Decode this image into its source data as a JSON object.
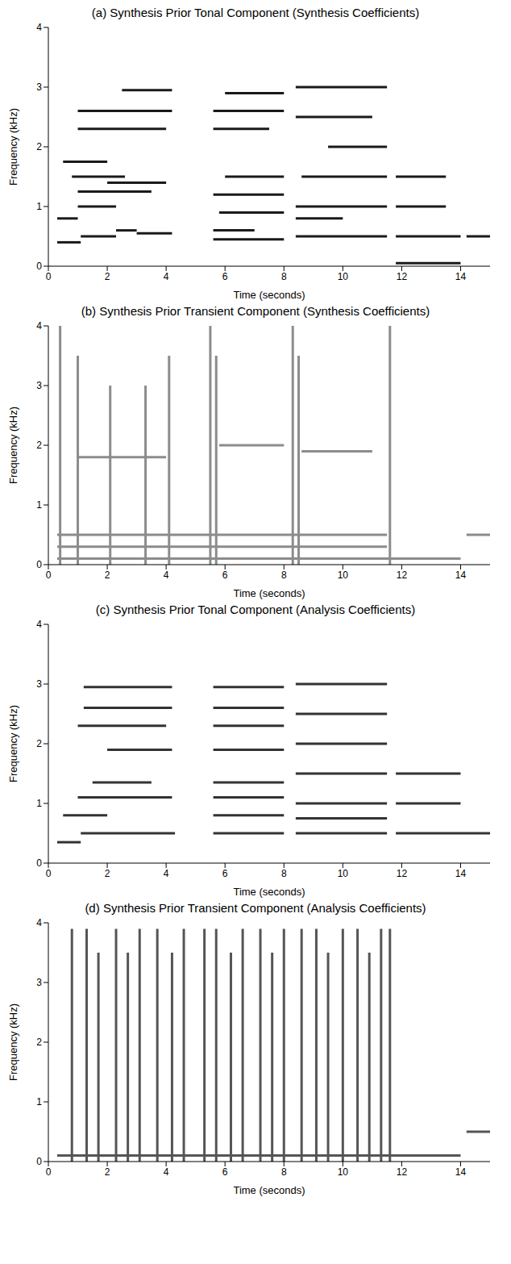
{
  "chart_data": [
    {
      "type": "spectrogram",
      "title": "(a) Synthesis Prior Tonal Component (Synthesis Coefficients)",
      "x_label": "Time (seconds)",
      "y_label": "Frequency (kHz)",
      "xlim": [
        0,
        15
      ],
      "ylim": [
        0,
        4
      ],
      "xticks": [
        0,
        2,
        4,
        6,
        8,
        10,
        12,
        14
      ],
      "yticks": [
        0,
        1,
        2,
        3,
        4
      ],
      "color": "#1a1a1a",
      "segments": [
        {
          "x": [
            0.3,
            1.1
          ],
          "y": [
            0.4,
            0.4
          ]
        },
        {
          "x": [
            1.1,
            2.3
          ],
          "y": [
            0.5,
            0.5
          ]
        },
        {
          "x": [
            2.3,
            3.0
          ],
          "y": [
            0.6,
            0.6
          ]
        },
        {
          "x": [
            3.0,
            4.2
          ],
          "y": [
            0.55,
            0.55
          ]
        },
        {
          "x": [
            0.3,
            1.0
          ],
          "y": [
            0.8,
            0.8
          ]
        },
        {
          "x": [
            1.0,
            2.3
          ],
          "y": [
            1.0,
            1.0
          ]
        },
        {
          "x": [
            1.0,
            3.5
          ],
          "y": [
            1.25,
            1.25
          ]
        },
        {
          "x": [
            0.8,
            2.6
          ],
          "y": [
            1.5,
            1.5
          ]
        },
        {
          "x": [
            2.0,
            4.0
          ],
          "y": [
            1.4,
            1.4
          ]
        },
        {
          "x": [
            0.5,
            2.0
          ],
          "y": [
            1.75,
            1.75
          ]
        },
        {
          "x": [
            1.0,
            4.0
          ],
          "y": [
            2.3,
            2.3
          ]
        },
        {
          "x": [
            1.0,
            4.2
          ],
          "y": [
            2.6,
            2.6
          ]
        },
        {
          "x": [
            2.5,
            4.2
          ],
          "y": [
            2.95,
            2.95
          ]
        },
        {
          "x": [
            5.6,
            8.0
          ],
          "y": [
            0.45,
            0.45
          ]
        },
        {
          "x": [
            5.6,
            7.0
          ],
          "y": [
            0.6,
            0.6
          ]
        },
        {
          "x": [
            5.8,
            8.0
          ],
          "y": [
            0.9,
            0.9
          ]
        },
        {
          "x": [
            5.6,
            8.0
          ],
          "y": [
            1.2,
            1.2
          ]
        },
        {
          "x": [
            6.0,
            8.0
          ],
          "y": [
            1.5,
            1.5
          ]
        },
        {
          "x": [
            5.6,
            7.5
          ],
          "y": [
            2.3,
            2.3
          ]
        },
        {
          "x": [
            5.6,
            8.0
          ],
          "y": [
            2.6,
            2.6
          ]
        },
        {
          "x": [
            6.0,
            8.0
          ],
          "y": [
            2.9,
            2.9
          ]
        },
        {
          "x": [
            8.4,
            11.5
          ],
          "y": [
            0.5,
            0.5
          ]
        },
        {
          "x": [
            8.4,
            10.0
          ],
          "y": [
            0.8,
            0.8
          ]
        },
        {
          "x": [
            8.4,
            11.5
          ],
          "y": [
            1.0,
            1.0
          ]
        },
        {
          "x": [
            8.6,
            11.5
          ],
          "y": [
            1.5,
            1.5
          ]
        },
        {
          "x": [
            9.5,
            11.5
          ],
          "y": [
            2.0,
            2.0
          ]
        },
        {
          "x": [
            8.4,
            11.0
          ],
          "y": [
            2.5,
            2.5
          ]
        },
        {
          "x": [
            8.4,
            11.5
          ],
          "y": [
            3.0,
            3.0
          ]
        },
        {
          "x": [
            11.8,
            14.0
          ],
          "y": [
            0.5,
            0.5
          ]
        },
        {
          "x": [
            11.8,
            13.5
          ],
          "y": [
            1.0,
            1.0
          ]
        },
        {
          "x": [
            11.8,
            13.5
          ],
          "y": [
            1.5,
            1.5
          ]
        },
        {
          "x": [
            14.2,
            15.0
          ],
          "y": [
            0.5,
            0.5
          ]
        },
        {
          "x": [
            11.8,
            14.0
          ],
          "y": [
            0.05,
            0.05
          ]
        }
      ]
    },
    {
      "type": "spectrogram",
      "title": "(b) Synthesis Prior Transient Component (Synthesis Coefficients)",
      "x_label": "Time (seconds)",
      "y_label": "Frequency (kHz)",
      "xlim": [
        0,
        15
      ],
      "ylim": [
        0,
        4
      ],
      "xticks": [
        0,
        2,
        4,
        6,
        8,
        10,
        12,
        14
      ],
      "yticks": [
        0,
        1,
        2,
        3,
        4
      ],
      "color": "#8c8c8c",
      "segments": [
        {
          "x": [
            0.3,
            14.0
          ],
          "y": [
            0.1,
            0.1
          ]
        },
        {
          "x": [
            0.3,
            11.5
          ],
          "y": [
            0.3,
            0.3
          ]
        },
        {
          "x": [
            0.3,
            11.5
          ],
          "y": [
            0.5,
            0.5
          ]
        },
        {
          "x": [
            14.2,
            15.0
          ],
          "y": [
            0.5,
            0.5
          ]
        },
        {
          "x": [
            1.0,
            4.0
          ],
          "y": [
            1.8,
            1.8
          ]
        },
        {
          "x": [
            5.8,
            8.0
          ],
          "y": [
            2.0,
            2.0
          ]
        },
        {
          "x": [
            8.6,
            11.0
          ],
          "y": [
            1.9,
            1.9
          ]
        },
        {
          "x": [
            0.4,
            0.4
          ],
          "y": [
            0.0,
            4.0
          ]
        },
        {
          "x": [
            1.0,
            1.0
          ],
          "y": [
            0.0,
            3.5
          ]
        },
        {
          "x": [
            2.1,
            2.1
          ],
          "y": [
            0.0,
            3.0
          ]
        },
        {
          "x": [
            3.3,
            3.3
          ],
          "y": [
            0.0,
            3.0
          ]
        },
        {
          "x": [
            4.1,
            4.1
          ],
          "y": [
            0.0,
            3.5
          ]
        },
        {
          "x": [
            5.5,
            5.5
          ],
          "y": [
            0.0,
            4.0
          ]
        },
        {
          "x": [
            5.7,
            5.7
          ],
          "y": [
            0.0,
            3.5
          ]
        },
        {
          "x": [
            8.3,
            8.3
          ],
          "y": [
            0.0,
            4.0
          ]
        },
        {
          "x": [
            8.5,
            8.5
          ],
          "y": [
            0.0,
            3.5
          ]
        },
        {
          "x": [
            11.6,
            11.6
          ],
          "y": [
            0.0,
            4.0
          ]
        }
      ]
    },
    {
      "type": "spectrogram",
      "title": "(c) Synthesis Prior Tonal Component (Analysis Coefficients)",
      "x_label": "Time (seconds)",
      "y_label": "Frequency (kHz)",
      "xlim": [
        0,
        15
      ],
      "ylim": [
        0,
        4
      ],
      "xticks": [
        0,
        2,
        4,
        6,
        8,
        10,
        12,
        14
      ],
      "yticks": [
        0,
        1,
        2,
        3,
        4
      ],
      "color": "#333333",
      "segments": [
        {
          "x": [
            0.3,
            1.1
          ],
          "y": [
            0.35,
            0.35
          ]
        },
        {
          "x": [
            1.1,
            4.3
          ],
          "y": [
            0.5,
            0.5
          ]
        },
        {
          "x": [
            0.5,
            2.0
          ],
          "y": [
            0.8,
            0.8
          ]
        },
        {
          "x": [
            1.0,
            4.2
          ],
          "y": [
            1.1,
            1.1
          ]
        },
        {
          "x": [
            1.5,
            3.5
          ],
          "y": [
            1.35,
            1.35
          ]
        },
        {
          "x": [
            2.0,
            4.2
          ],
          "y": [
            1.9,
            1.9
          ]
        },
        {
          "x": [
            1.0,
            4.0
          ],
          "y": [
            2.3,
            2.3
          ]
        },
        {
          "x": [
            1.2,
            4.2
          ],
          "y": [
            2.6,
            2.6
          ]
        },
        {
          "x": [
            1.2,
            4.2
          ],
          "y": [
            2.95,
            2.95
          ]
        },
        {
          "x": [
            5.6,
            8.0
          ],
          "y": [
            0.5,
            0.5
          ]
        },
        {
          "x": [
            5.6,
            8.0
          ],
          "y": [
            0.8,
            0.8
          ]
        },
        {
          "x": [
            5.6,
            8.0
          ],
          "y": [
            1.1,
            1.1
          ]
        },
        {
          "x": [
            5.6,
            8.0
          ],
          "y": [
            1.35,
            1.35
          ]
        },
        {
          "x": [
            5.6,
            8.0
          ],
          "y": [
            1.9,
            1.9
          ]
        },
        {
          "x": [
            5.6,
            8.0
          ],
          "y": [
            2.3,
            2.3
          ]
        },
        {
          "x": [
            5.6,
            8.0
          ],
          "y": [
            2.6,
            2.6
          ]
        },
        {
          "x": [
            5.6,
            8.0
          ],
          "y": [
            2.95,
            2.95
          ]
        },
        {
          "x": [
            8.4,
            11.5
          ],
          "y": [
            0.5,
            0.5
          ]
        },
        {
          "x": [
            8.4,
            11.5
          ],
          "y": [
            0.75,
            0.75
          ]
        },
        {
          "x": [
            8.4,
            11.5
          ],
          "y": [
            1.0,
            1.0
          ]
        },
        {
          "x": [
            8.4,
            11.5
          ],
          "y": [
            1.5,
            1.5
          ]
        },
        {
          "x": [
            8.4,
            11.5
          ],
          "y": [
            2.0,
            2.0
          ]
        },
        {
          "x": [
            8.4,
            11.5
          ],
          "y": [
            2.5,
            2.5
          ]
        },
        {
          "x": [
            8.4,
            11.5
          ],
          "y": [
            3.0,
            3.0
          ]
        },
        {
          "x": [
            11.8,
            15.0
          ],
          "y": [
            0.5,
            0.5
          ]
        },
        {
          "x": [
            11.8,
            14.0
          ],
          "y": [
            1.0,
            1.0
          ]
        },
        {
          "x": [
            11.8,
            14.0
          ],
          "y": [
            1.5,
            1.5
          ]
        }
      ]
    },
    {
      "type": "spectrogram",
      "title": "(d) Synthesis Prior Transient Component (Analysis Coefficients)",
      "x_label": "Time (seconds)",
      "y_label": "Frequency (kHz)",
      "xlim": [
        0,
        15
      ],
      "ylim": [
        0,
        4
      ],
      "xticks": [
        0,
        2,
        4,
        6,
        8,
        10,
        12,
        14
      ],
      "yticks": [
        0,
        1,
        2,
        3,
        4
      ],
      "color": "#555555",
      "segments": [
        {
          "x": [
            0.3,
            14.0
          ],
          "y": [
            0.1,
            0.1
          ]
        },
        {
          "x": [
            14.2,
            15.0
          ],
          "y": [
            0.5,
            0.5
          ]
        },
        {
          "x": [
            0.8,
            0.8
          ],
          "y": [
            0.0,
            3.9
          ]
        },
        {
          "x": [
            1.3,
            1.3
          ],
          "y": [
            0.0,
            3.9
          ]
        },
        {
          "x": [
            1.7,
            1.7
          ],
          "y": [
            0.0,
            3.5
          ]
        },
        {
          "x": [
            2.3,
            2.3
          ],
          "y": [
            0.0,
            3.9
          ]
        },
        {
          "x": [
            2.7,
            2.7
          ],
          "y": [
            0.0,
            3.5
          ]
        },
        {
          "x": [
            3.1,
            3.1
          ],
          "y": [
            0.0,
            3.9
          ]
        },
        {
          "x": [
            3.7,
            3.7
          ],
          "y": [
            0.0,
            3.9
          ]
        },
        {
          "x": [
            4.2,
            4.2
          ],
          "y": [
            0.0,
            3.5
          ]
        },
        {
          "x": [
            4.6,
            4.6
          ],
          "y": [
            0.0,
            3.9
          ]
        },
        {
          "x": [
            5.3,
            5.3
          ],
          "y": [
            0.0,
            3.9
          ]
        },
        {
          "x": [
            5.7,
            5.7
          ],
          "y": [
            0.0,
            3.9
          ]
        },
        {
          "x": [
            6.2,
            6.2
          ],
          "y": [
            0.0,
            3.5
          ]
        },
        {
          "x": [
            6.6,
            6.6
          ],
          "y": [
            0.0,
            3.9
          ]
        },
        {
          "x": [
            7.2,
            7.2
          ],
          "y": [
            0.0,
            3.9
          ]
        },
        {
          "x": [
            7.6,
            7.6
          ],
          "y": [
            0.0,
            3.5
          ]
        },
        {
          "x": [
            8.0,
            8.0
          ],
          "y": [
            0.0,
            3.9
          ]
        },
        {
          "x": [
            8.6,
            8.6
          ],
          "y": [
            0.0,
            3.9
          ]
        },
        {
          "x": [
            9.1,
            9.1
          ],
          "y": [
            0.0,
            3.9
          ]
        },
        {
          "x": [
            9.5,
            9.5
          ],
          "y": [
            0.0,
            3.5
          ]
        },
        {
          "x": [
            10.0,
            10.0
          ],
          "y": [
            0.0,
            3.9
          ]
        },
        {
          "x": [
            10.5,
            10.5
          ],
          "y": [
            0.0,
            3.9
          ]
        },
        {
          "x": [
            10.9,
            10.9
          ],
          "y": [
            0.0,
            3.5
          ]
        },
        {
          "x": [
            11.3,
            11.3
          ],
          "y": [
            0.0,
            3.9
          ]
        },
        {
          "x": [
            11.6,
            11.6
          ],
          "y": [
            0.0,
            3.9
          ]
        }
      ]
    }
  ]
}
